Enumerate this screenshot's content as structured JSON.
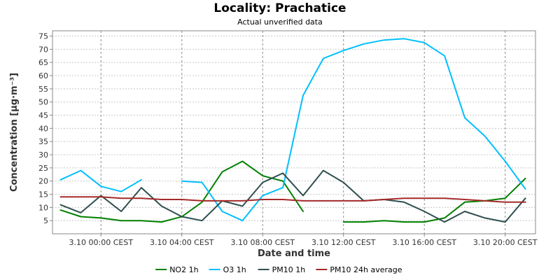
{
  "chart_data": {
    "type": "line",
    "title": "Locality: Prachatice",
    "subtitle": "Actual unverified data",
    "xlabel": "Date and time",
    "ylabel": "Concentration [µg·m⁻³]",
    "ylim": [
      0,
      77
    ],
    "yticks": [
      5,
      10,
      15,
      20,
      25,
      30,
      35,
      40,
      45,
      50,
      55,
      60,
      65,
      70,
      75
    ],
    "x_hours": [
      -2,
      -1,
      0,
      1,
      2,
      3,
      4,
      5,
      6,
      7,
      8,
      9,
      10,
      11,
      12,
      13,
      14,
      15,
      16,
      17,
      18,
      19,
      20,
      21
    ],
    "xlim_hours": [
      -2.4,
      21.5
    ],
    "xtick_hours": [
      0,
      4,
      8,
      12,
      16,
      20
    ],
    "xtick_labels": [
      "3.10 00:00 CEST",
      "3.10 04:00 CEST",
      "3.10 08:00 CEST",
      "3.10 12:00 CEST",
      "3.10 16:00 CEST",
      "3.10 20:00 CEST"
    ],
    "grid": true,
    "legend_position": "bottom",
    "series": [
      {
        "name": "NO2 1h",
        "color": "#008000",
        "values": [
          9,
          6.5,
          6,
          5,
          5,
          4.5,
          6.5,
          12,
          23.5,
          27.5,
          22,
          20,
          8.5,
          null,
          4.5,
          4.5,
          5,
          4.5,
          4.5,
          6,
          12,
          12.5,
          13.5,
          21
        ]
      },
      {
        "name": "O3 1h",
        "color": "#00bfff",
        "values": [
          20.5,
          24,
          18,
          16,
          20.5,
          null,
          20,
          19.5,
          8.5,
          5,
          14.5,
          17.5,
          52.5,
          66.5,
          69.5,
          72,
          73.5,
          74,
          72.5,
          67.5,
          44,
          37,
          27.5,
          17
        ]
      },
      {
        "name": "PM10 1h",
        "color": "#2f4f4f",
        "values": [
          11,
          8,
          14.5,
          8.5,
          17.5,
          10.5,
          6.5,
          5,
          12.5,
          10.5,
          19.5,
          23,
          14.5,
          24,
          19.5,
          12.5,
          13,
          12,
          8.5,
          4.5,
          8.5,
          6,
          4.5,
          13.5
        ]
      },
      {
        "name": "PM10 24h average",
        "color": "#a52a2a",
        "values": [
          14,
          14,
          14,
          13.5,
          13.5,
          13,
          13,
          12.5,
          12.5,
          12.5,
          13,
          13,
          12.5,
          12.5,
          12.5,
          12.5,
          13,
          13.5,
          13.5,
          13.5,
          13,
          12.5,
          12,
          12
        ]
      }
    ]
  }
}
